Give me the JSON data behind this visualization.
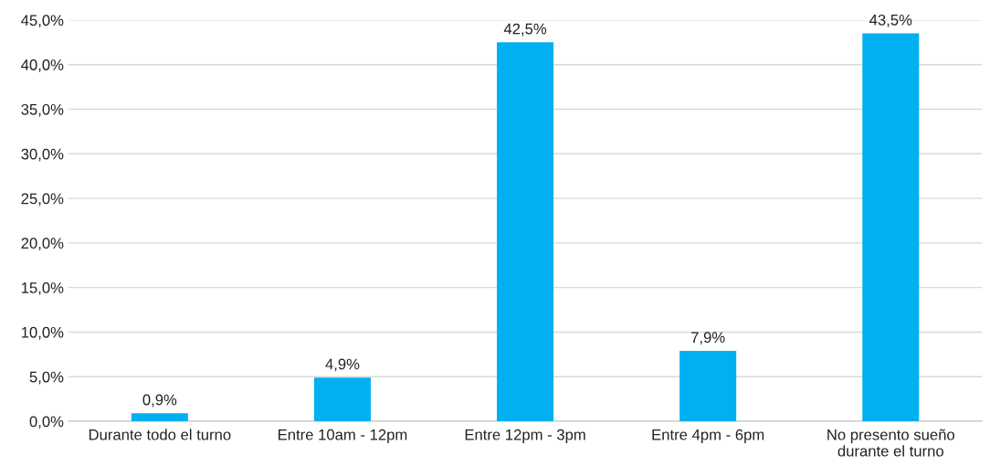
{
  "chart_data": {
    "type": "bar",
    "categories": [
      "Durante todo el turno",
      "Entre 10am - 12pm",
      "Entre 12pm - 3pm",
      "Entre 4pm - 6pm",
      "No presento sueño\ndurante el turno"
    ],
    "values": [
      0.9,
      4.9,
      42.5,
      7.9,
      43.5
    ],
    "value_labels": [
      "0,9%",
      "4,9%",
      "42,5%",
      "7,9%",
      "43,5%"
    ],
    "color": "#00b0f0",
    "ylim": [
      0,
      45
    ],
    "yticks": [
      {
        "value": 0,
        "label": "0,0%"
      },
      {
        "value": 5,
        "label": "5,0%"
      },
      {
        "value": 10,
        "label": "10,0%"
      },
      {
        "value": 15,
        "label": "15,0%"
      },
      {
        "value": 20,
        "label": "20,0%"
      },
      {
        "value": 25,
        "label": "25,0%"
      },
      {
        "value": 30,
        "label": "30,0%"
      },
      {
        "value": 35,
        "label": "35,0%"
      },
      {
        "value": 40,
        "label": "40,0%"
      },
      {
        "value": 45,
        "label": "45,0%"
      }
    ],
    "grid": "y"
  }
}
